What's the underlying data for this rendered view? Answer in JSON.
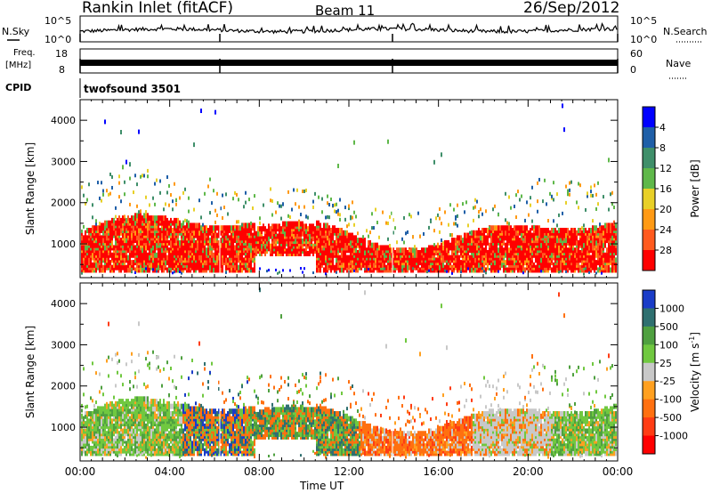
{
  "header": {
    "station": "Rankin Inlet (fitACF)",
    "beam": "Beam 11",
    "date": "26/Sep/2012"
  },
  "nsky_panel": {
    "left_label": "N.Sky",
    "left_ticks": [
      "10^5",
      "10^0"
    ],
    "right_label": "N.Search",
    "right_ticks": [
      "10^5",
      "10^0"
    ]
  },
  "freq_panel": {
    "left_label_1": "Freq.",
    "left_label_2": "[MHz]",
    "left_ticks": [
      "18",
      "8"
    ],
    "right_label": "Nave",
    "right_ticks": [
      "60",
      "0"
    ]
  },
  "cpid": {
    "label": "CPID",
    "value": "twofsound 3501"
  },
  "chart_data": [
    {
      "type": "heatmap",
      "panel": "power",
      "ylabel": "Slant Range [km]",
      "yticks": [
        1000,
        2000,
        3000,
        4000
      ],
      "ylim": [
        180,
        4500
      ],
      "xticks": [
        "00:00",
        "04:00",
        "08:00",
        "12:00",
        "16:00",
        "20:00",
        "00:00"
      ],
      "xlim_hours": [
        0,
        24
      ],
      "colorbar": {
        "label": "Power [dB]",
        "ticks": [
          "4",
          "8",
          "12",
          "16",
          "20",
          "24",
          "28"
        ],
        "colors": [
          "#0000ff",
          "#1f5fa8",
          "#3f8f6a",
          "#5fb84a",
          "#e8d028",
          "#ff9a14",
          "#ff5a1e",
          "#ff0000"
        ]
      }
    },
    {
      "type": "heatmap",
      "panel": "velocity",
      "ylabel": "Slant Range [km]",
      "yticks": [
        1000,
        2000,
        3000,
        4000
      ],
      "ylim": [
        180,
        4500
      ],
      "xticks": [
        "00:00",
        "04:00",
        "08:00",
        "12:00",
        "16:00",
        "20:00",
        "00:00"
      ],
      "xlim_hours": [
        0,
        24
      ],
      "xlabel": "Time UT",
      "colorbar": {
        "label": "Velocity [m s",
        "label_sup": "-1",
        "label_end": "]",
        "ticks": [
          "1000",
          "500",
          "100",
          "25",
          "-25",
          "-100",
          "-500",
          "-1000"
        ],
        "colors": [
          "#1a3cc8",
          "#2f7070",
          "#4fa040",
          "#70c840",
          "#c8c8c8",
          "#ffa020",
          "#ff7010",
          "#ff3c14",
          "#ff0000"
        ]
      }
    }
  ]
}
